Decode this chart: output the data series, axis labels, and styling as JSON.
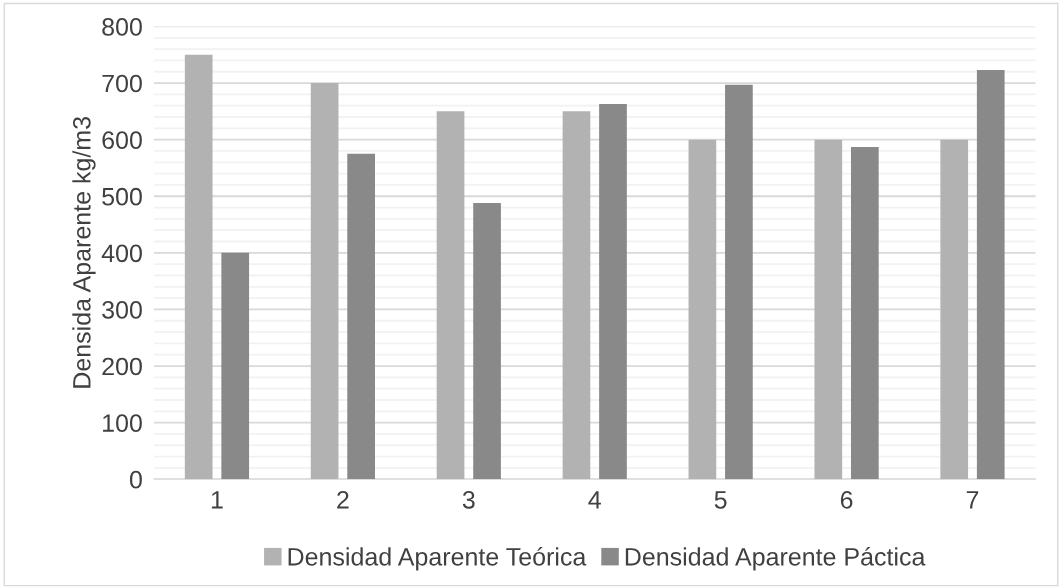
{
  "chart_data": {
    "type": "bar",
    "ylabel": "Densida Aparente kg/m3",
    "categories": [
      "1",
      "2",
      "3",
      "4",
      "5",
      "6",
      "7"
    ],
    "series": [
      {
        "name": "Densidad Aparente Teórica",
        "color": "#b2b2b2",
        "values": [
          750,
          700,
          650,
          650,
          600,
          600,
          600
        ]
      },
      {
        "name": "Densidad Aparente Páctica",
        "color": "#898989",
        "values": [
          400,
          575,
          488,
          663,
          697,
          587,
          723
        ]
      }
    ],
    "ylim": [
      0,
      800
    ],
    "yticks": [
      0,
      100,
      200,
      300,
      400,
      500,
      600,
      700,
      800
    ],
    "grid": "y",
    "legend": "bottom"
  }
}
